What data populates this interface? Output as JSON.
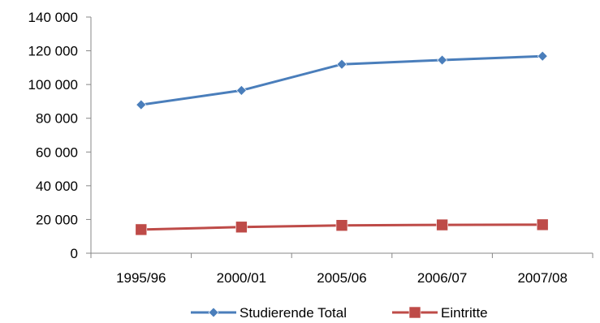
{
  "chart_data": {
    "type": "line",
    "categories": [
      "1995/96",
      "2000/01",
      "2005/06",
      "2006/07",
      "2007/08"
    ],
    "series": [
      {
        "name": "Studierende Total",
        "values": [
          88000,
          96500,
          112000,
          114500,
          116800
        ],
        "color": "#4a7ebb",
        "marker": "diamond"
      },
      {
        "name": "Eintritte",
        "values": [
          14000,
          15500,
          16500,
          16800,
          16900
        ],
        "color": "#be4b48",
        "marker": "square"
      }
    ],
    "ylim": [
      0,
      140000
    ],
    "yticks": [
      0,
      20000,
      40000,
      60000,
      80000,
      100000,
      120000,
      140000
    ],
    "ytick_labels": [
      "0",
      "20 000",
      "40 000",
      "60 000",
      "80 000",
      "100 000",
      "120 000",
      "140 000"
    ],
    "grid": false,
    "legend_position": "bottom"
  }
}
